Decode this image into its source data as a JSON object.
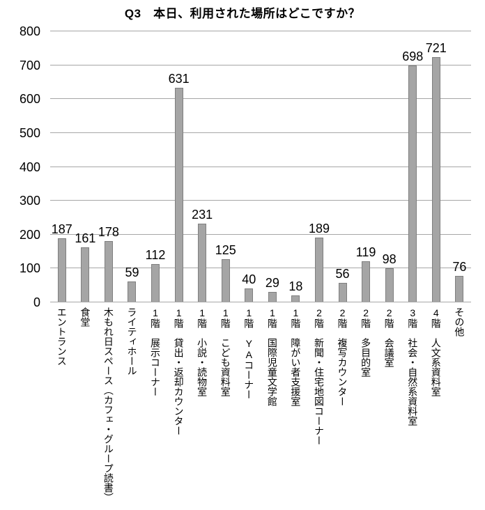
{
  "chart_data": {
    "type": "bar",
    "title": "Q3　本日、利用された場所はどこですか？",
    "categories": [
      "エントランス",
      "食堂",
      "木もれ日スペース（カフェ・グループ読書）",
      "ライティホール",
      "1階　展示コーナー",
      "1階　貸出・返却カウンター",
      "1階　小説・読物室",
      "1階　こども資料室",
      "1階　YAコーナー",
      "1階　国際児童文学館",
      "1階　障がい者支援室",
      "2階　新聞・住宅地図コーナー",
      "2階　複写カウンター",
      "2階　多目的室",
      "2階　会議室",
      "3階　社会・自然系資料室",
      "4階　人文系資料室",
      "その他"
    ],
    "values": [
      187,
      161,
      178,
      59,
      112,
      631,
      231,
      125,
      40,
      29,
      18,
      189,
      56,
      119,
      98,
      698,
      721,
      76
    ],
    "xlabel": "",
    "ylabel": "",
    "ylim": [
      0,
      800
    ],
    "ytick_interval": 100,
    "yticks": [
      0,
      100,
      200,
      300,
      400,
      500,
      600,
      700,
      800
    ],
    "grid": true,
    "legend": false,
    "bar_color": "#a5a5a5",
    "bar_border_color": "#7f7f7f",
    "gridline_color": "#a6a6a6",
    "text_color": "#000000",
    "background_color": "#ffffff"
  }
}
